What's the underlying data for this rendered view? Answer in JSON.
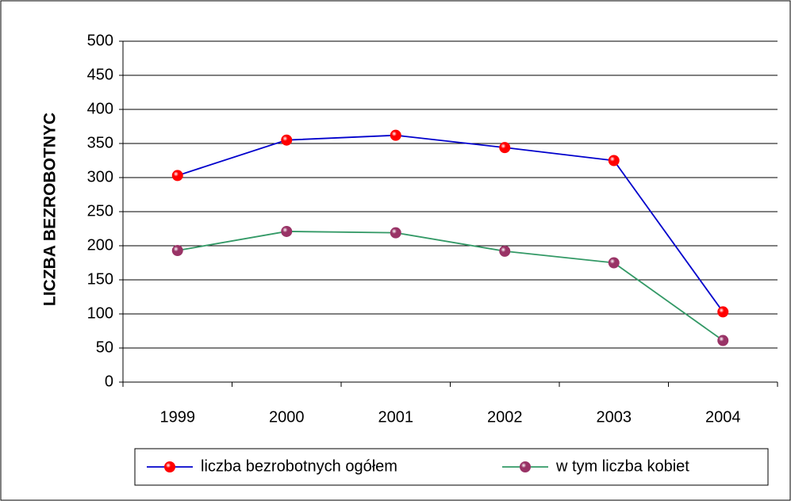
{
  "chart_data": {
    "type": "line",
    "y_label": "LICZBA BEZROBOTNYC",
    "categories": [
      "1999",
      "2000",
      "2001",
      "2002",
      "2003",
      "2004"
    ],
    "series": [
      {
        "name": "liczba bezrobotnych ogółem",
        "color": "#0000cc",
        "marker_color": "#ff0000",
        "values": [
          303,
          355,
          362,
          344,
          325,
          103
        ]
      },
      {
        "name": "w tym liczba kobiet",
        "color": "#339966",
        "marker_color": "#993366",
        "values": [
          193,
          221,
          219,
          192,
          175,
          61
        ]
      }
    ],
    "ylim": [
      0,
      500
    ],
    "yticks": [
      0,
      50,
      100,
      150,
      200,
      250,
      300,
      350,
      400,
      450,
      500
    ],
    "grid": true,
    "legend": "bottom"
  }
}
